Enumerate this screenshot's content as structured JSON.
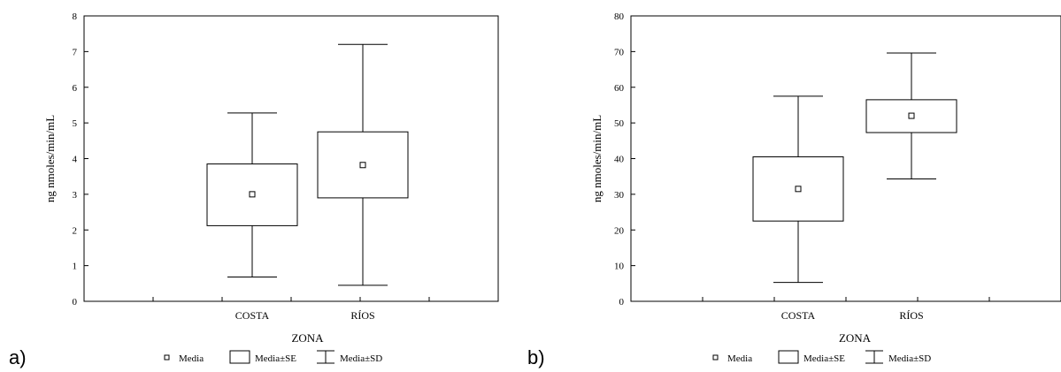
{
  "chart_data": [
    {
      "type": "box",
      "panel_label": "a)",
      "xlabel": "ZONA",
      "ylabel": "ng nmoles/min/mL",
      "ylim": [
        0,
        8
      ],
      "yticks": [
        0,
        1,
        2,
        3,
        4,
        5,
        6,
        7,
        8
      ],
      "categories": [
        "COSTA",
        "RÍOS"
      ],
      "series": [
        {
          "category": "COSTA",
          "mean": 3.0,
          "se_low": 2.12,
          "se_high": 3.85,
          "sd_low": 0.68,
          "sd_high": 5.28
        },
        {
          "category": "RÍOS",
          "mean": 3.82,
          "se_low": 2.9,
          "se_high": 4.75,
          "sd_low": 0.45,
          "sd_high": 7.2
        }
      ],
      "legend": [
        "Media",
        "Media±SE",
        "Media±SD"
      ],
      "grid": false
    },
    {
      "type": "box",
      "panel_label": "b)",
      "xlabel": "ZONA",
      "ylabel": "ng nmoles/min/mL",
      "ylim": [
        0,
        80
      ],
      "yticks": [
        0,
        10,
        20,
        30,
        40,
        50,
        60,
        70,
        80
      ],
      "categories": [
        "COSTA",
        "RÍOS"
      ],
      "series": [
        {
          "category": "COSTA",
          "mean": 31.5,
          "se_low": 22.5,
          "se_high": 40.5,
          "sd_low": 5.3,
          "sd_high": 57.5
        },
        {
          "category": "RÍOS",
          "mean": 52.0,
          "se_low": 47.3,
          "se_high": 56.5,
          "sd_low": 34.3,
          "sd_high": 69.6
        }
      ],
      "legend": [
        "Media",
        "Media±SE",
        "Media±SD"
      ],
      "grid": false
    }
  ]
}
